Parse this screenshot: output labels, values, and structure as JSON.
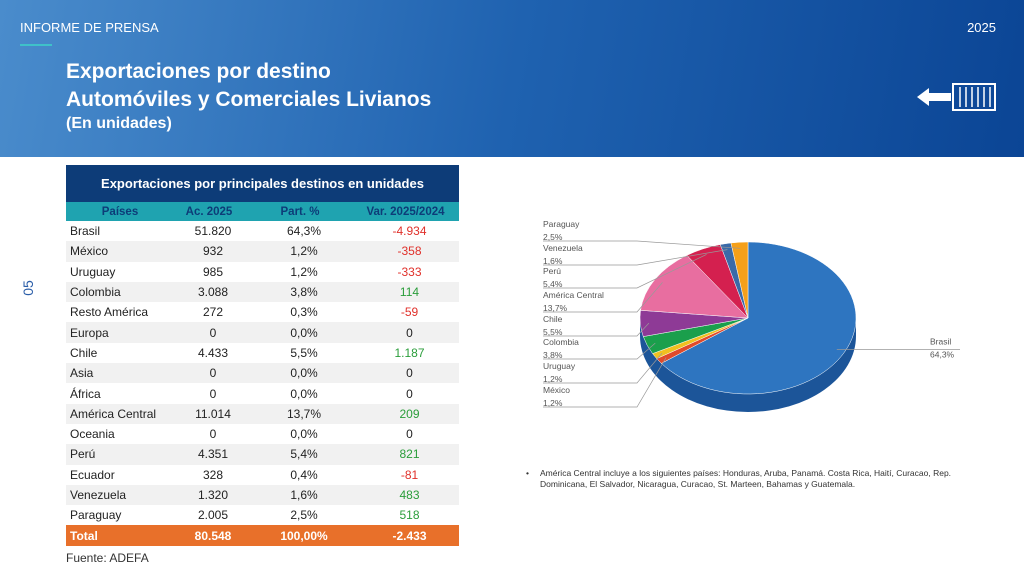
{
  "header": {
    "kicker": "INFORME DE PRENSA",
    "year": "2025",
    "title_line1": "Exportaciones por destino",
    "title_line2": "Automóviles y Comerciales Livianos",
    "subtitle": "(En unidades)"
  },
  "page_number": "05",
  "table": {
    "title": "Exportaciones por principales destinos en unidades",
    "columns": [
      "Países",
      "Ac. 2025",
      "Part. %",
      "Var. 2025/2024"
    ],
    "rows": [
      [
        "Brasil",
        "51.820",
        "64,3%",
        "-4.934"
      ],
      [
        "México",
        "932",
        "1,2%",
        "-358"
      ],
      [
        "Uruguay",
        "985",
        "1,2%",
        "-333"
      ],
      [
        "Colombia",
        "3.088",
        "3,8%",
        "114"
      ],
      [
        "Resto América",
        "272",
        "0,3%",
        "-59"
      ],
      [
        "Europa",
        "0",
        "0,0%",
        "0"
      ],
      [
        "Chile",
        "4.433",
        "5,5%",
        "1.187"
      ],
      [
        "Asia",
        "0",
        "0,0%",
        "0"
      ],
      [
        "África",
        "0",
        "0,0%",
        "0"
      ],
      [
        "América Central",
        "11.014",
        "13,7%",
        "209"
      ],
      [
        "Oceania",
        "0",
        "0,0%",
        "0"
      ],
      [
        "Perú",
        "4.351",
        "5,4%",
        "821"
      ],
      [
        "Ecuador",
        "328",
        "0,4%",
        "-81"
      ],
      [
        "Venezuela",
        "1.320",
        "1,6%",
        "483"
      ],
      [
        "Paraguay",
        "2.005",
        "2,5%",
        "518"
      ]
    ],
    "total": [
      "Total",
      "80.548",
      "100,00%",
      "-2.433"
    ]
  },
  "source": "Fuente: ADEFA",
  "note": "América Central incluye a los siguientes países: Honduras, Aruba, Panamá.  Costa Rica, Haití, Curacao, Rep. Dominicana, El Salvador, Nicaragua, Curacao, St. Marteen, Bahamas y Guatemala.",
  "chart_data": {
    "type": "pie",
    "categories": [
      "Brasil",
      "México",
      "Uruguay",
      "Colombia",
      "Chile",
      "América Central",
      "Perú",
      "Venezuela",
      "Paraguay"
    ],
    "values": [
      64.3,
      1.2,
      1.2,
      3.8,
      5.5,
      13.7,
      5.4,
      1.6,
      2.5
    ],
    "value_labels": [
      "64,3%",
      "1,2%",
      "1,2%",
      "3,8%",
      "5,5%",
      "13,7%",
      "5,4%",
      "1,6%",
      "2,5%"
    ],
    "colors": [
      "#2e75c0",
      "#e04a2a",
      "#f0c020",
      "#1a9f4c",
      "#8e3a96",
      "#e86ea0",
      "#d4204f",
      "#3a6aa8",
      "#f5a01a"
    ]
  }
}
